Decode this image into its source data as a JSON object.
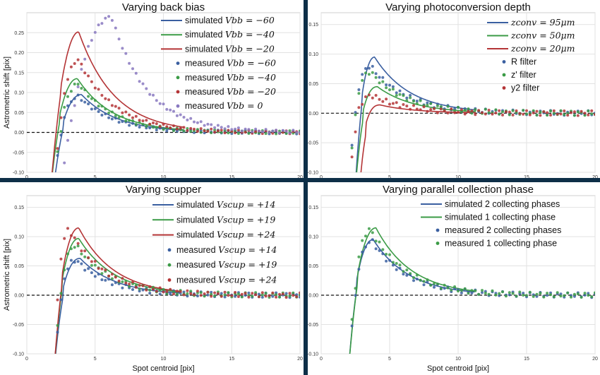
{
  "figure": {
    "divider_color": "#0e2f48",
    "colors": {
      "blue": "#3a5fa0",
      "green": "#3b9b46",
      "red": "#b43436",
      "purple": "#8878c0"
    }
  },
  "chart_data": [
    {
      "type": "line",
      "title": "Varying back bias",
      "xlabel": "",
      "ylabel": "Astrometric shift [pix]",
      "xlim": [
        0,
        20
      ],
      "ylim": [
        -0.1,
        0.3
      ],
      "yticks": [
        -0.1,
        -0.05,
        0.0,
        0.05,
        0.1,
        0.15,
        0.2,
        0.25
      ],
      "xticks": [
        0,
        5,
        10,
        15,
        20
      ],
      "grid": true,
      "zero_line": true,
      "legend_position": "upper-right",
      "series": [
        {
          "name": "simulated $V_{bb} = -60$",
          "legend_label": {
            "prefix": "simulated ",
            "math": "Vbb = −60"
          },
          "color": "blue",
          "kind": "line",
          "peak": [
            4.0,
            0.095
          ],
          "x0": 2.0,
          "x1": 11.5
        },
        {
          "name": "simulated $V_{bb} = -40$",
          "legend_label": {
            "prefix": "simulated ",
            "math": "Vbb = −40"
          },
          "color": "green",
          "kind": "line",
          "peak": [
            3.7,
            0.135
          ],
          "x0": 1.8,
          "x1": 11.5
        },
        {
          "name": "simulated $V_{bb} = -20$",
          "legend_label": {
            "prefix": "simulated ",
            "math": "Vbb = −20"
          },
          "color": "red",
          "kind": "line",
          "peak": [
            3.8,
            0.252
          ],
          "x0": 1.8,
          "x1": 11.5
        },
        {
          "name": "measured $V_{bb} = -60$",
          "legend_label": {
            "prefix": "measured ",
            "math": "Vbb = −60"
          },
          "color": "blue",
          "kind": "points",
          "peak": [
            3.8,
            0.09
          ],
          "x0": 2.0,
          "x1": 20.0
        },
        {
          "name": "measured $V_{bb} = -40$",
          "legend_label": {
            "prefix": "measured ",
            "math": "Vbb = −40"
          },
          "color": "green",
          "kind": "points",
          "peak": [
            3.8,
            0.122
          ],
          "x0": 2.0,
          "x1": 20.0
        },
        {
          "name": "measured $V_{bb} = -20$",
          "legend_label": {
            "prefix": "measured ",
            "math": "Vbb = −20"
          },
          "color": "red",
          "kind": "points",
          "peak": [
            3.8,
            0.182
          ],
          "x0": 2.0,
          "x1": 20.0
        },
        {
          "name": "measured $V_{bb} = 0$",
          "legend_label": {
            "prefix": "measured ",
            "math": "Vbb = 0"
          },
          "color": "purple",
          "kind": "points",
          "peak": [
            6.2,
            0.29
          ],
          "x0": 2.5,
          "x1": 20.0
        }
      ]
    },
    {
      "type": "line",
      "title": "Varying photoconversion depth",
      "xlabel": "",
      "ylabel": "",
      "xlim": [
        0,
        20
      ],
      "ylim": [
        -0.1,
        0.17
      ],
      "yticks": [
        -0.1,
        -0.05,
        0.0,
        0.05,
        0.1,
        0.15
      ],
      "xticks": [
        0,
        5,
        10,
        15,
        20
      ],
      "grid": true,
      "zero_line": true,
      "legend_position": "upper-right",
      "series": [
        {
          "name": "$z_{conv} = 95\\mu m$",
          "legend_label": {
            "prefix": "",
            "math": "zconv = 95μm"
          },
          "color": "blue",
          "kind": "line",
          "peak": [
            3.9,
            0.095
          ],
          "x0": 2.5,
          "x1": 11.3
        },
        {
          "name": "$z_{conv} = 50\\mu m$",
          "legend_label": {
            "prefix": "",
            "math": "zconv = 50μm"
          },
          "color": "green",
          "kind": "line",
          "peak": [
            4.1,
            0.045
          ],
          "x0": 2.5,
          "x1": 11.3
        },
        {
          "name": "$z_{conv} = 20\\mu m$",
          "legend_label": {
            "prefix": "",
            "math": "zconv = 20μm"
          },
          "color": "red",
          "kind": "line",
          "peak": [
            4.3,
            0.014
          ],
          "x0": 2.8,
          "x1": 11.3
        },
        {
          "name": "R filter",
          "legend_label": {
            "prefix": "R filter",
            "math": ""
          },
          "color": "blue",
          "kind": "points",
          "peak": [
            3.6,
            0.08
          ],
          "x0": 2.0,
          "x1": 20.0
        },
        {
          "name": "z' filter",
          "legend_label": {
            "prefix": "z' filter",
            "math": ""
          },
          "color": "green",
          "kind": "points",
          "peak": [
            3.6,
            0.07
          ],
          "x0": 2.0,
          "x1": 20.0
        },
        {
          "name": "y2 filter",
          "legend_label": {
            "prefix": "y2 filter",
            "math": ""
          },
          "color": "red",
          "kind": "points",
          "peak": [
            3.7,
            0.03
          ],
          "x0": 2.0,
          "x1": 20.0
        }
      ]
    },
    {
      "type": "line",
      "title": "Varying scupper",
      "xlabel": "Spot centroid [pix]",
      "ylabel": "Astrometric shift [pix]",
      "xlim": [
        0,
        20
      ],
      "ylim": [
        -0.1,
        0.17
      ],
      "yticks": [
        -0.1,
        -0.05,
        0.0,
        0.05,
        0.1,
        0.15
      ],
      "xticks": [
        0,
        5,
        10,
        15,
        20
      ],
      "grid": true,
      "zero_line": true,
      "legend_position": "upper-right",
      "series": [
        {
          "name": "simulated $V_{scup} = +14$",
          "legend_label": {
            "prefix": "simulated ",
            "math": "Vscup = +14"
          },
          "color": "blue",
          "kind": "line",
          "peak": [
            3.9,
            0.063
          ],
          "x0": 2.0,
          "x1": 11.2
        },
        {
          "name": "simulated $V_{scup} = +19$",
          "legend_label": {
            "prefix": "simulated ",
            "math": "Vscup = +19"
          },
          "color": "green",
          "kind": "line",
          "peak": [
            3.8,
            0.097
          ],
          "x0": 2.0,
          "x1": 11.2
        },
        {
          "name": "simulated $V_{scup} = +24$",
          "legend_label": {
            "prefix": "simulated ",
            "math": "Vscup = +24"
          },
          "color": "red",
          "kind": "line",
          "peak": [
            3.8,
            0.115
          ],
          "x0": 2.0,
          "x1": 11.2
        },
        {
          "name": "measured $V_{scup} = +14$",
          "legend_label": {
            "prefix": "measured ",
            "math": "Vscup = +14"
          },
          "color": "blue",
          "kind": "points",
          "peak": [
            3.6,
            0.06
          ],
          "x0": 2.0,
          "x1": 20.0
        },
        {
          "name": "measured $V_{scup} = +19$",
          "legend_label": {
            "prefix": "measured ",
            "math": "Vscup = +19"
          },
          "color": "green",
          "kind": "points",
          "peak": [
            3.6,
            0.085
          ],
          "x0": 2.0,
          "x1": 20.0
        },
        {
          "name": "measured $V_{scup} = +24$",
          "legend_label": {
            "prefix": "measured ",
            "math": "Vscup = +24"
          },
          "color": "red",
          "kind": "points",
          "peak": [
            3.1,
            0.112
          ],
          "x0": 2.0,
          "x1": 20.0
        }
      ]
    },
    {
      "type": "line",
      "title": "Varying parallel collection phase",
      "xlabel": "Spot centroid [pix]",
      "ylabel": "",
      "xlim": [
        0,
        20
      ],
      "ylim": [
        -0.1,
        0.17
      ],
      "yticks": [
        -0.1,
        -0.05,
        0.0,
        0.05,
        0.1,
        0.15
      ],
      "xticks": [
        0,
        5,
        10,
        15,
        20
      ],
      "grid": true,
      "zero_line": true,
      "legend_position": "upper-right",
      "series": [
        {
          "name": "simulated 2 collecting phases",
          "legend_label": {
            "prefix": "simulated 2 collecting phases",
            "math": ""
          },
          "color": "blue",
          "kind": "line",
          "peak": [
            3.8,
            0.095
          ],
          "x0": 2.0,
          "x1": 11.2
        },
        {
          "name": "simulated 1 collecting phase",
          "legend_label": {
            "prefix": "simulated 1 collecting phase",
            "math": ""
          },
          "color": "green",
          "kind": "line",
          "peak": [
            4.0,
            0.115
          ],
          "x0": 2.0,
          "x1": 11.2
        },
        {
          "name": "measured 2 collecting phases",
          "legend_label": {
            "prefix": "measured 2 collecting phases",
            "math": ""
          },
          "color": "blue",
          "kind": "points",
          "peak": [
            3.7,
            0.093
          ],
          "x0": 2.0,
          "x1": 20.0
        },
        {
          "name": "measured 1 collecting phase",
          "legend_label": {
            "prefix": "measured 1 collecting phase",
            "math": ""
          },
          "color": "green",
          "kind": "points",
          "peak": [
            3.6,
            0.112
          ],
          "x0": 2.0,
          "x1": 20.0
        }
      ]
    }
  ]
}
